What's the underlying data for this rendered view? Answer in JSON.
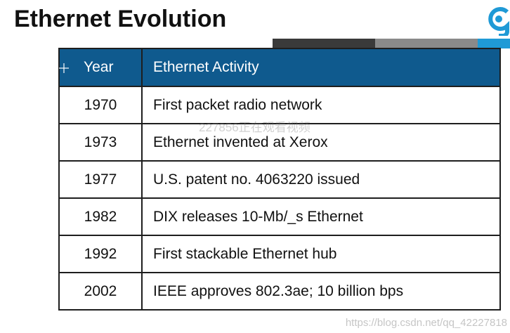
{
  "slide": {
    "title": "Ethernet Evolution"
  },
  "table": {
    "headers": {
      "year": "Year",
      "activity": "Ethernet Activity"
    },
    "rows": [
      {
        "year": "1970",
        "activity": "First packet radio network"
      },
      {
        "year": "1973",
        "activity": "Ethernet invented at Xerox"
      },
      {
        "year": "1977",
        "activity": "U.S. patent no. 4063220 issued"
      },
      {
        "year": "1982",
        "activity": "DIX releases 10-Mb/_s Ethernet"
      },
      {
        "year": "1992",
        "activity": "First stackable Ethernet hub"
      },
      {
        "year": "2002",
        "activity": "IEEE approves 802.3ae; 10 billion bps"
      }
    ]
  },
  "watermarks": {
    "center": "227856正在观看视频",
    "url": "https://blog.csdn.net/qq_42227818"
  },
  "colors": {
    "header_bg": "#0f5a8e",
    "accent_blue": "#1f9ad6",
    "accent_dark": "#3a3a3a",
    "accent_gray": "#8a8a8a"
  },
  "icons": {
    "logo": "brand-logo-icon",
    "cursor": "crosshair-cursor-icon"
  }
}
